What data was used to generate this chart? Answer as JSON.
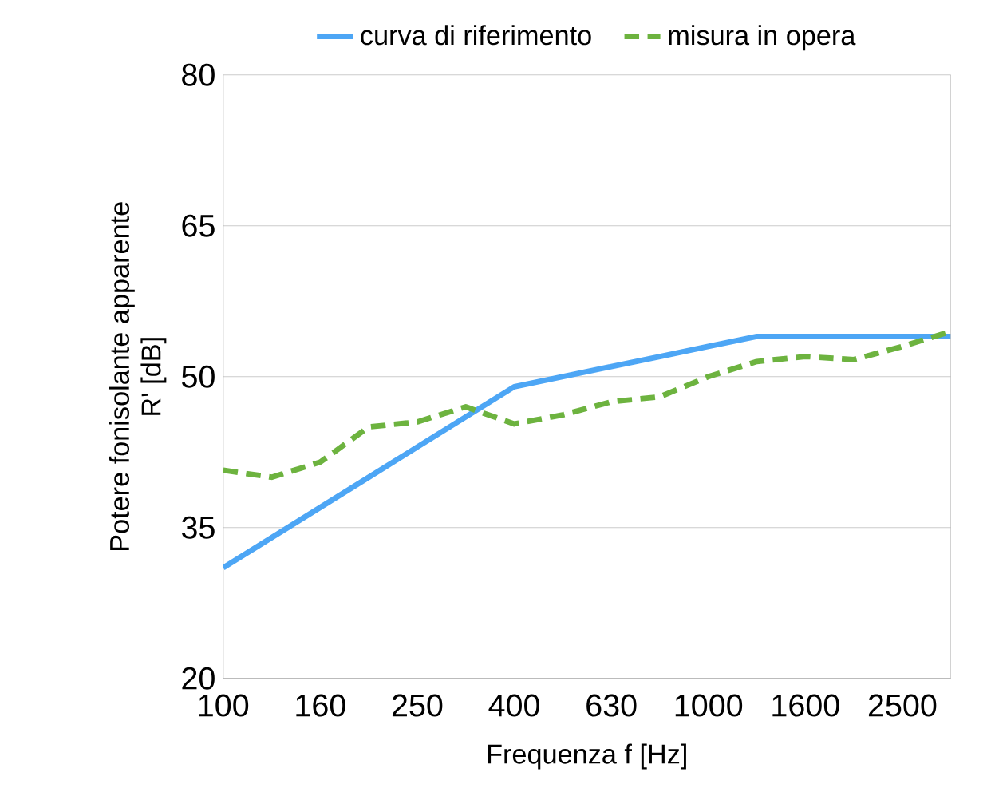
{
  "chart_data": {
    "type": "line",
    "xlabel": "Frequenza f [Hz]",
    "ylabel": "Potere fonisolante apparente\nR' [dB]",
    "categories": [
      "100",
      null,
      "160",
      null,
      "250",
      null,
      "400",
      null,
      "630",
      null,
      "1000",
      null,
      "1600",
      null,
      "2500",
      null
    ],
    "series": [
      {
        "name": "curva di riferimento",
        "color": "#4da6f5",
        "line_style": "solid",
        "values": [
          31,
          34,
          37,
          40,
          43,
          46,
          49,
          50,
          51,
          52,
          53,
          54,
          54,
          54,
          54,
          54
        ]
      },
      {
        "name": "misura in opera",
        "color": "#6db33f",
        "line_style": "dashed",
        "values": [
          40.7,
          40,
          41.5,
          45,
          45.5,
          47,
          45.3,
          46.2,
          47.5,
          48,
          50,
          51.5,
          52,
          51.7,
          53,
          54.5
        ]
      }
    ],
    "ylim": [
      20,
      80
    ],
    "yticks": [
      20,
      35,
      50,
      65,
      80
    ],
    "grid": "y",
    "legend": "top",
    "marker": "none"
  }
}
